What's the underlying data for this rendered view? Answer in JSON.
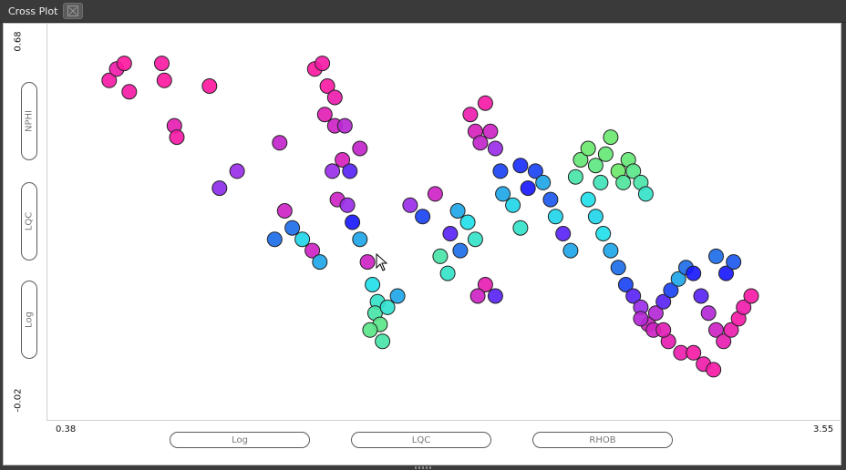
{
  "window": {
    "tab_title": "Cross Plot",
    "tab_close_icon": "close-icon"
  },
  "y_axis": {
    "max_label": "0.68",
    "min_label": "-0.02",
    "buttons": [
      "NPHI",
      "LQC",
      "Log"
    ]
  },
  "x_axis": {
    "min_label": "0.38",
    "max_label": "3.55",
    "buttons": [
      "Log",
      "LQC",
      "RHOB"
    ]
  },
  "chart_data": {
    "type": "scatter",
    "xlim": [
      0.38,
      3.55
    ],
    "ylim": [
      -0.02,
      0.68
    ],
    "legend": "none",
    "grid": false,
    "color_scale": [
      "#ff1aa0",
      "#9a2ee8",
      "#1a1aff",
      "#1e6ee8",
      "#22e0e8",
      "#6fe86a"
    ],
    "points": [
      {
        "x": 0.63,
        "y": 0.58,
        "c": 0.02
      },
      {
        "x": 0.66,
        "y": 0.6,
        "c": 0.03
      },
      {
        "x": 0.69,
        "y": 0.61,
        "c": 0.0
      },
      {
        "x": 0.71,
        "y": 0.56,
        "c": 0.02
      },
      {
        "x": 0.84,
        "y": 0.61,
        "c": 0.01
      },
      {
        "x": 0.85,
        "y": 0.58,
        "c": 0.0
      },
      {
        "x": 0.89,
        "y": 0.5,
        "c": 0.05
      },
      {
        "x": 0.9,
        "y": 0.48,
        "c": 0.02
      },
      {
        "x": 1.03,
        "y": 0.57,
        "c": 0.0
      },
      {
        "x": 1.07,
        "y": 0.39,
        "c": 0.22
      },
      {
        "x": 1.14,
        "y": 0.42,
        "c": 0.2
      },
      {
        "x": 1.31,
        "y": 0.47,
        "c": 0.12
      },
      {
        "x": 1.29,
        "y": 0.3,
        "c": 0.6
      },
      {
        "x": 1.33,
        "y": 0.35,
        "c": 0.1
      },
      {
        "x": 1.36,
        "y": 0.32,
        "c": 0.6
      },
      {
        "x": 1.4,
        "y": 0.3,
        "c": 0.78
      },
      {
        "x": 1.44,
        "y": 0.28,
        "c": 0.1
      },
      {
        "x": 1.47,
        "y": 0.26,
        "c": 0.7
      },
      {
        "x": 1.45,
        "y": 0.6,
        "c": 0.0
      },
      {
        "x": 1.48,
        "y": 0.61,
        "c": 0.02
      },
      {
        "x": 1.5,
        "y": 0.57,
        "c": 0.01
      },
      {
        "x": 1.53,
        "y": 0.55,
        "c": 0.04
      },
      {
        "x": 1.49,
        "y": 0.52,
        "c": 0.06
      },
      {
        "x": 1.53,
        "y": 0.5,
        "c": 0.1
      },
      {
        "x": 1.57,
        "y": 0.5,
        "c": 0.14
      },
      {
        "x": 1.52,
        "y": 0.42,
        "c": 0.2
      },
      {
        "x": 1.56,
        "y": 0.44,
        "c": 0.08
      },
      {
        "x": 1.59,
        "y": 0.42,
        "c": 0.3
      },
      {
        "x": 1.63,
        "y": 0.46,
        "c": 0.12
      },
      {
        "x": 1.54,
        "y": 0.37,
        "c": 0.1
      },
      {
        "x": 1.58,
        "y": 0.36,
        "c": 0.2
      },
      {
        "x": 1.6,
        "y": 0.33,
        "c": 0.4
      },
      {
        "x": 1.63,
        "y": 0.3,
        "c": 0.7
      },
      {
        "x": 1.66,
        "y": 0.26,
        "c": 0.1
      },
      {
        "x": 1.68,
        "y": 0.22,
        "c": 0.8
      },
      {
        "x": 1.7,
        "y": 0.19,
        "c": 0.85
      },
      {
        "x": 1.69,
        "y": 0.17,
        "c": 0.9
      },
      {
        "x": 1.71,
        "y": 0.15,
        "c": 0.95
      },
      {
        "x": 1.74,
        "y": 0.18,
        "c": 0.84
      },
      {
        "x": 1.78,
        "y": 0.2,
        "c": 0.7
      },
      {
        "x": 1.67,
        "y": 0.14,
        "c": 0.95
      },
      {
        "x": 1.72,
        "y": 0.12,
        "c": 0.9
      },
      {
        "x": 1.83,
        "y": 0.36,
        "c": 0.2
      },
      {
        "x": 1.88,
        "y": 0.34,
        "c": 0.5
      },
      {
        "x": 1.93,
        "y": 0.38,
        "c": 0.1
      },
      {
        "x": 1.99,
        "y": 0.31,
        "c": 0.3
      },
      {
        "x": 2.03,
        "y": 0.28,
        "c": 0.6
      },
      {
        "x": 2.02,
        "y": 0.35,
        "c": 0.7
      },
      {
        "x": 2.06,
        "y": 0.33,
        "c": 0.8
      },
      {
        "x": 2.09,
        "y": 0.3,
        "c": 0.85
      },
      {
        "x": 1.95,
        "y": 0.27,
        "c": 0.9
      },
      {
        "x": 1.98,
        "y": 0.24,
        "c": 0.85
      },
      {
        "x": 2.07,
        "y": 0.52,
        "c": 0.04
      },
      {
        "x": 2.09,
        "y": 0.49,
        "c": 0.08
      },
      {
        "x": 2.11,
        "y": 0.47,
        "c": 0.12
      },
      {
        "x": 2.13,
        "y": 0.54,
        "c": 0.02
      },
      {
        "x": 2.15,
        "y": 0.49,
        "c": 0.1
      },
      {
        "x": 2.17,
        "y": 0.46,
        "c": 0.2
      },
      {
        "x": 2.19,
        "y": 0.42,
        "c": 0.5
      },
      {
        "x": 2.2,
        "y": 0.38,
        "c": 0.7
      },
      {
        "x": 2.24,
        "y": 0.36,
        "c": 0.78
      },
      {
        "x": 2.27,
        "y": 0.32,
        "c": 0.85
      },
      {
        "x": 2.13,
        "y": 0.22,
        "c": 0.05
      },
      {
        "x": 2.1,
        "y": 0.2,
        "c": 0.1
      },
      {
        "x": 2.17,
        "y": 0.2,
        "c": 0.3
      },
      {
        "x": 2.27,
        "y": 0.43,
        "c": 0.45
      },
      {
        "x": 2.3,
        "y": 0.39,
        "c": 0.4
      },
      {
        "x": 2.33,
        "y": 0.42,
        "c": 0.5
      },
      {
        "x": 2.36,
        "y": 0.4,
        "c": 0.7
      },
      {
        "x": 2.39,
        "y": 0.37,
        "c": 0.55
      },
      {
        "x": 2.41,
        "y": 0.34,
        "c": 0.78
      },
      {
        "x": 2.44,
        "y": 0.31,
        "c": 0.3
      },
      {
        "x": 2.47,
        "y": 0.28,
        "c": 0.7
      },
      {
        "x": 2.49,
        "y": 0.41,
        "c": 0.9
      },
      {
        "x": 2.51,
        "y": 0.44,
        "c": 0.98
      },
      {
        "x": 2.54,
        "y": 0.46,
        "c": 0.99
      },
      {
        "x": 2.57,
        "y": 0.43,
        "c": 0.96
      },
      {
        "x": 2.59,
        "y": 0.4,
        "c": 0.88
      },
      {
        "x": 2.61,
        "y": 0.45,
        "c": 0.98
      },
      {
        "x": 2.63,
        "y": 0.48,
        "c": 0.99
      },
      {
        "x": 2.66,
        "y": 0.42,
        "c": 1.0
      },
      {
        "x": 2.68,
        "y": 0.4,
        "c": 0.92
      },
      {
        "x": 2.7,
        "y": 0.44,
        "c": 0.98
      },
      {
        "x": 2.72,
        "y": 0.42,
        "c": 0.95
      },
      {
        "x": 2.75,
        "y": 0.4,
        "c": 0.9
      },
      {
        "x": 2.77,
        "y": 0.38,
        "c": 0.85
      },
      {
        "x": 2.54,
        "y": 0.37,
        "c": 0.8
      },
      {
        "x": 2.57,
        "y": 0.34,
        "c": 0.78
      },
      {
        "x": 2.6,
        "y": 0.31,
        "c": 0.8
      },
      {
        "x": 2.63,
        "y": 0.28,
        "c": 0.7
      },
      {
        "x": 2.66,
        "y": 0.25,
        "c": 0.6
      },
      {
        "x": 2.69,
        "y": 0.22,
        "c": 0.5
      },
      {
        "x": 2.72,
        "y": 0.2,
        "c": 0.3
      },
      {
        "x": 2.75,
        "y": 0.18,
        "c": 0.2
      },
      {
        "x": 2.78,
        "y": 0.15,
        "c": 0.1
      },
      {
        "x": 2.81,
        "y": 0.17,
        "c": 0.15
      },
      {
        "x": 2.84,
        "y": 0.19,
        "c": 0.3
      },
      {
        "x": 2.87,
        "y": 0.21,
        "c": 0.5
      },
      {
        "x": 2.9,
        "y": 0.23,
        "c": 0.7
      },
      {
        "x": 2.93,
        "y": 0.25,
        "c": 0.6
      },
      {
        "x": 2.96,
        "y": 0.24,
        "c": 0.4
      },
      {
        "x": 2.99,
        "y": 0.2,
        "c": 0.3
      },
      {
        "x": 3.02,
        "y": 0.17,
        "c": 0.15
      },
      {
        "x": 3.05,
        "y": 0.14,
        "c": 0.1
      },
      {
        "x": 3.08,
        "y": 0.12,
        "c": 0.05
      },
      {
        "x": 3.11,
        "y": 0.14,
        "c": 0.04
      },
      {
        "x": 3.14,
        "y": 0.16,
        "c": 0.02
      },
      {
        "x": 3.16,
        "y": 0.18,
        "c": 0.03
      },
      {
        "x": 3.19,
        "y": 0.2,
        "c": 0.02
      },
      {
        "x": 3.05,
        "y": 0.27,
        "c": 0.6
      },
      {
        "x": 3.09,
        "y": 0.24,
        "c": 0.4
      },
      {
        "x": 3.12,
        "y": 0.26,
        "c": 0.55
      },
      {
        "x": 2.86,
        "y": 0.12,
        "c": 0.05
      },
      {
        "x": 2.91,
        "y": 0.1,
        "c": 0.04
      },
      {
        "x": 2.96,
        "y": 0.1,
        "c": 0.02
      },
      {
        "x": 3.0,
        "y": 0.08,
        "c": 0.03
      },
      {
        "x": 3.04,
        "y": 0.07,
        "c": 0.02
      },
      {
        "x": 2.8,
        "y": 0.14,
        "c": 0.1
      },
      {
        "x": 2.84,
        "y": 0.14,
        "c": 0.06
      },
      {
        "x": 2.75,
        "y": 0.16,
        "c": 0.15
      }
    ]
  }
}
